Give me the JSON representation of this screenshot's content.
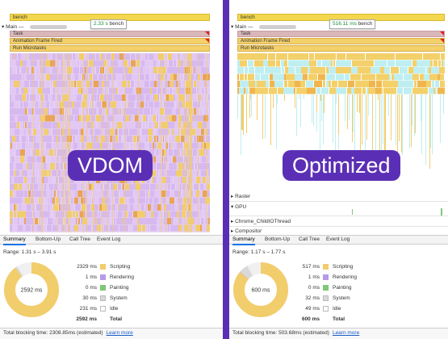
{
  "colors": {
    "scripting": "#f2cd6b",
    "rendering": "#b69ae8",
    "painting": "#7fc77a",
    "system": "#d9d9d9",
    "idle": "#ffffff",
    "divider": "#5b2fb5",
    "link": "#1a5dc7"
  },
  "left": {
    "label": "VDOM",
    "bench": "bench",
    "main_label": "▾ Main —",
    "tooltip_value": "2.33 s",
    "tooltip_name": "bench",
    "rows": {
      "task": "Task",
      "anim": "Animation Frame Fired",
      "micro": "Run Microtasks"
    },
    "tabs": [
      "Summary",
      "Bottom-Up",
      "Call Tree",
      "Event Log"
    ],
    "range": "Range: 1.31 s – 3.91 s",
    "donut_center": "2592 ms",
    "summary": [
      {
        "value": "2329 ms",
        "name": "Scripting",
        "color": "scripting"
      },
      {
        "value": "1 ms",
        "name": "Rendering",
        "color": "rendering"
      },
      {
        "value": "0 ms",
        "name": "Painting",
        "color": "painting"
      },
      {
        "value": "30 ms",
        "name": "System",
        "color": "system"
      },
      {
        "value": "231 ms",
        "name": "Idle",
        "color": "idle"
      },
      {
        "value": "2592 ms",
        "name": "Total",
        "color": ""
      }
    ],
    "donut_fractions": [
      0.8985,
      0.0004,
      0.0,
      0.0116,
      0.0891
    ],
    "footer_text": "Total blocking time: 2308.85ms (estimated)",
    "learn_more": "Learn more"
  },
  "right": {
    "label": "Optimized",
    "bench": "bench",
    "main_label": "▾ Main —",
    "tooltip_value": "516.11 ms",
    "tooltip_name": "bench",
    "rows": {
      "task": "Task",
      "anim": "Animation Frame Fired",
      "micro": "Run Microtasks"
    },
    "tracks": [
      "▸ Raster",
      "▾ GPU",
      "▸ Chrome_ChildIOThread",
      "▸ Compositor"
    ],
    "tabs": [
      "Summary",
      "Bottom-Up",
      "Call Tree",
      "Event Log"
    ],
    "range": "Range: 1.17 s – 1.77 s",
    "donut_center": "600 ms",
    "summary": [
      {
        "value": "517 ms",
        "name": "Scripting",
        "color": "scripting"
      },
      {
        "value": "1 ms",
        "name": "Rendering",
        "color": "rendering"
      },
      {
        "value": "0 ms",
        "name": "Painting",
        "color": "painting"
      },
      {
        "value": "32 ms",
        "name": "System",
        "color": "system"
      },
      {
        "value": "49 ms",
        "name": "Idle",
        "color": "idle"
      },
      {
        "value": "600 ms",
        "name": "Total",
        "color": ""
      }
    ],
    "donut_fractions": [
      0.8617,
      0.0017,
      0.0,
      0.0533,
      0.0817
    ],
    "footer_text": "Total blocking time: 503.68ms (estimated)",
    "learn_more": "Learn more"
  }
}
